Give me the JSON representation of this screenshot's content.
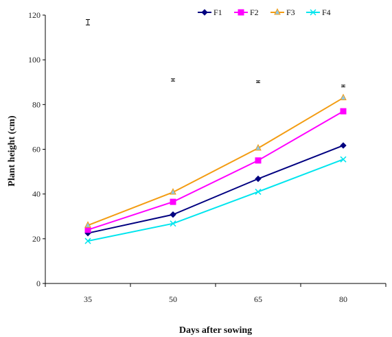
{
  "chart_data": {
    "type": "line",
    "title": "",
    "xlabel": "Days after sowing",
    "ylabel": "Plant height (cm)",
    "categories": [
      "35",
      "50",
      "65",
      "80"
    ],
    "ylim": [
      0,
      120
    ],
    "yticks": [
      0,
      20,
      40,
      60,
      80,
      100,
      120
    ],
    "grid": false,
    "legend": "top",
    "series": [
      {
        "name": "F1",
        "values": [
          22.5,
          30.8,
          46.8,
          61.7
        ],
        "color": "#000080",
        "marker": "diamond"
      },
      {
        "name": "F2",
        "values": [
          24.0,
          36.5,
          55.0,
          77.0
        ],
        "color": "#FF00FF",
        "marker": "square"
      },
      {
        "name": "F3",
        "values": [
          26.0,
          40.8,
          60.5,
          83.0
        ],
        "color": "#F39C12",
        "marker": "triangle",
        "marker_fill": "#8EC6E6"
      },
      {
        "name": "F4",
        "values": [
          19.0,
          26.8,
          41.0,
          55.5
        ],
        "color": "#00E5EE",
        "marker": "x"
      }
    ],
    "error_bars": [
      {
        "category": "35",
        "value": 116.8,
        "half_range": 1.2
      },
      {
        "category": "50",
        "value": 91.0,
        "half_range": 0.5
      },
      {
        "category": "65",
        "value": 90.2,
        "half_range": 0.4
      },
      {
        "category": "80",
        "value": 88.3,
        "half_range": 0.4
      }
    ]
  }
}
